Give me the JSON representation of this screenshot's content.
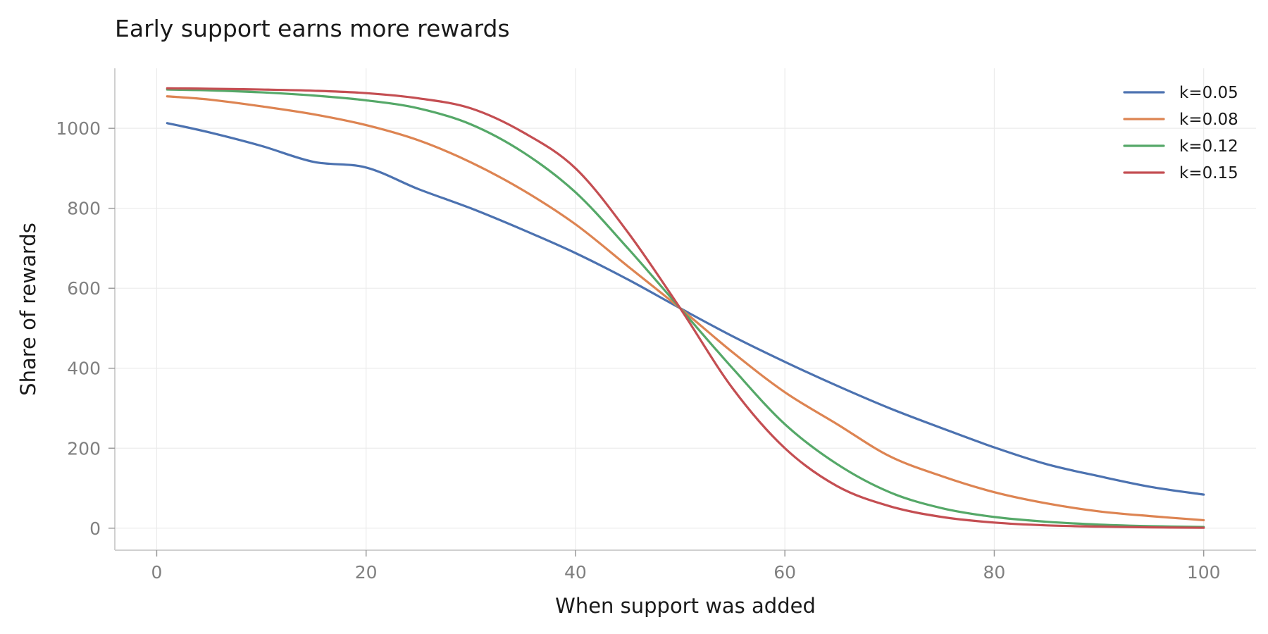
{
  "chart_data": {
    "type": "line",
    "title": "Early support earns more rewards",
    "xlabel": "When support was added",
    "ylabel": "Share of rewards",
    "xlim": [
      -4,
      105
    ],
    "ylim": [
      -55,
      1150
    ],
    "x_ticks": [
      0,
      20,
      40,
      60,
      80,
      100
    ],
    "y_ticks": [
      0,
      200,
      400,
      600,
      800,
      1000
    ],
    "grid": true,
    "legend_position": "top-right",
    "series": [
      {
        "name": "k=0.05",
        "color": "#4c72b0",
        "x": [
          1,
          5,
          10,
          15,
          20,
          25,
          30,
          35,
          40,
          45,
          50,
          55,
          60,
          65,
          70,
          75,
          80,
          85,
          90,
          95,
          100
        ],
        "y": [
          1013,
          990,
          956,
          916,
          902,
          848,
          800,
          746,
          688,
          622,
          550,
          480,
          416,
          356,
          300,
          250,
          202,
          160,
          130,
          103,
          84
        ]
      },
      {
        "name": "k=0.08",
        "color": "#dd8452",
        "x": [
          1,
          5,
          10,
          15,
          20,
          25,
          30,
          35,
          40,
          45,
          50,
          55,
          60,
          65,
          70,
          75,
          80,
          85,
          90,
          95,
          100
        ],
        "y": [
          1080,
          1072,
          1055,
          1035,
          1008,
          970,
          915,
          845,
          760,
          655,
          550,
          440,
          340,
          260,
          180,
          130,
          90,
          62,
          42,
          30,
          20
        ]
      },
      {
        "name": "k=0.12",
        "color": "#55a868",
        "x": [
          1,
          5,
          10,
          15,
          20,
          25,
          30,
          35,
          40,
          45,
          50,
          55,
          60,
          65,
          70,
          75,
          80,
          85,
          90,
          95,
          100
        ],
        "y": [
          1097,
          1095,
          1090,
          1082,
          1070,
          1050,
          1010,
          940,
          840,
          700,
          550,
          400,
          260,
          160,
          90,
          50,
          28,
          16,
          9,
          5,
          3
        ]
      },
      {
        "name": "k=0.15",
        "color": "#c44e52",
        "x": [
          1,
          5,
          10,
          15,
          20,
          25,
          30,
          35,
          40,
          45,
          50,
          55,
          60,
          65,
          70,
          75,
          80,
          85,
          90,
          95,
          100
        ],
        "y": [
          1100,
          1099,
          1097,
          1094,
          1088,
          1075,
          1050,
          990,
          900,
          740,
          550,
          350,
          200,
          105,
          55,
          28,
          14,
          7,
          4,
          2,
          1
        ]
      }
    ]
  }
}
